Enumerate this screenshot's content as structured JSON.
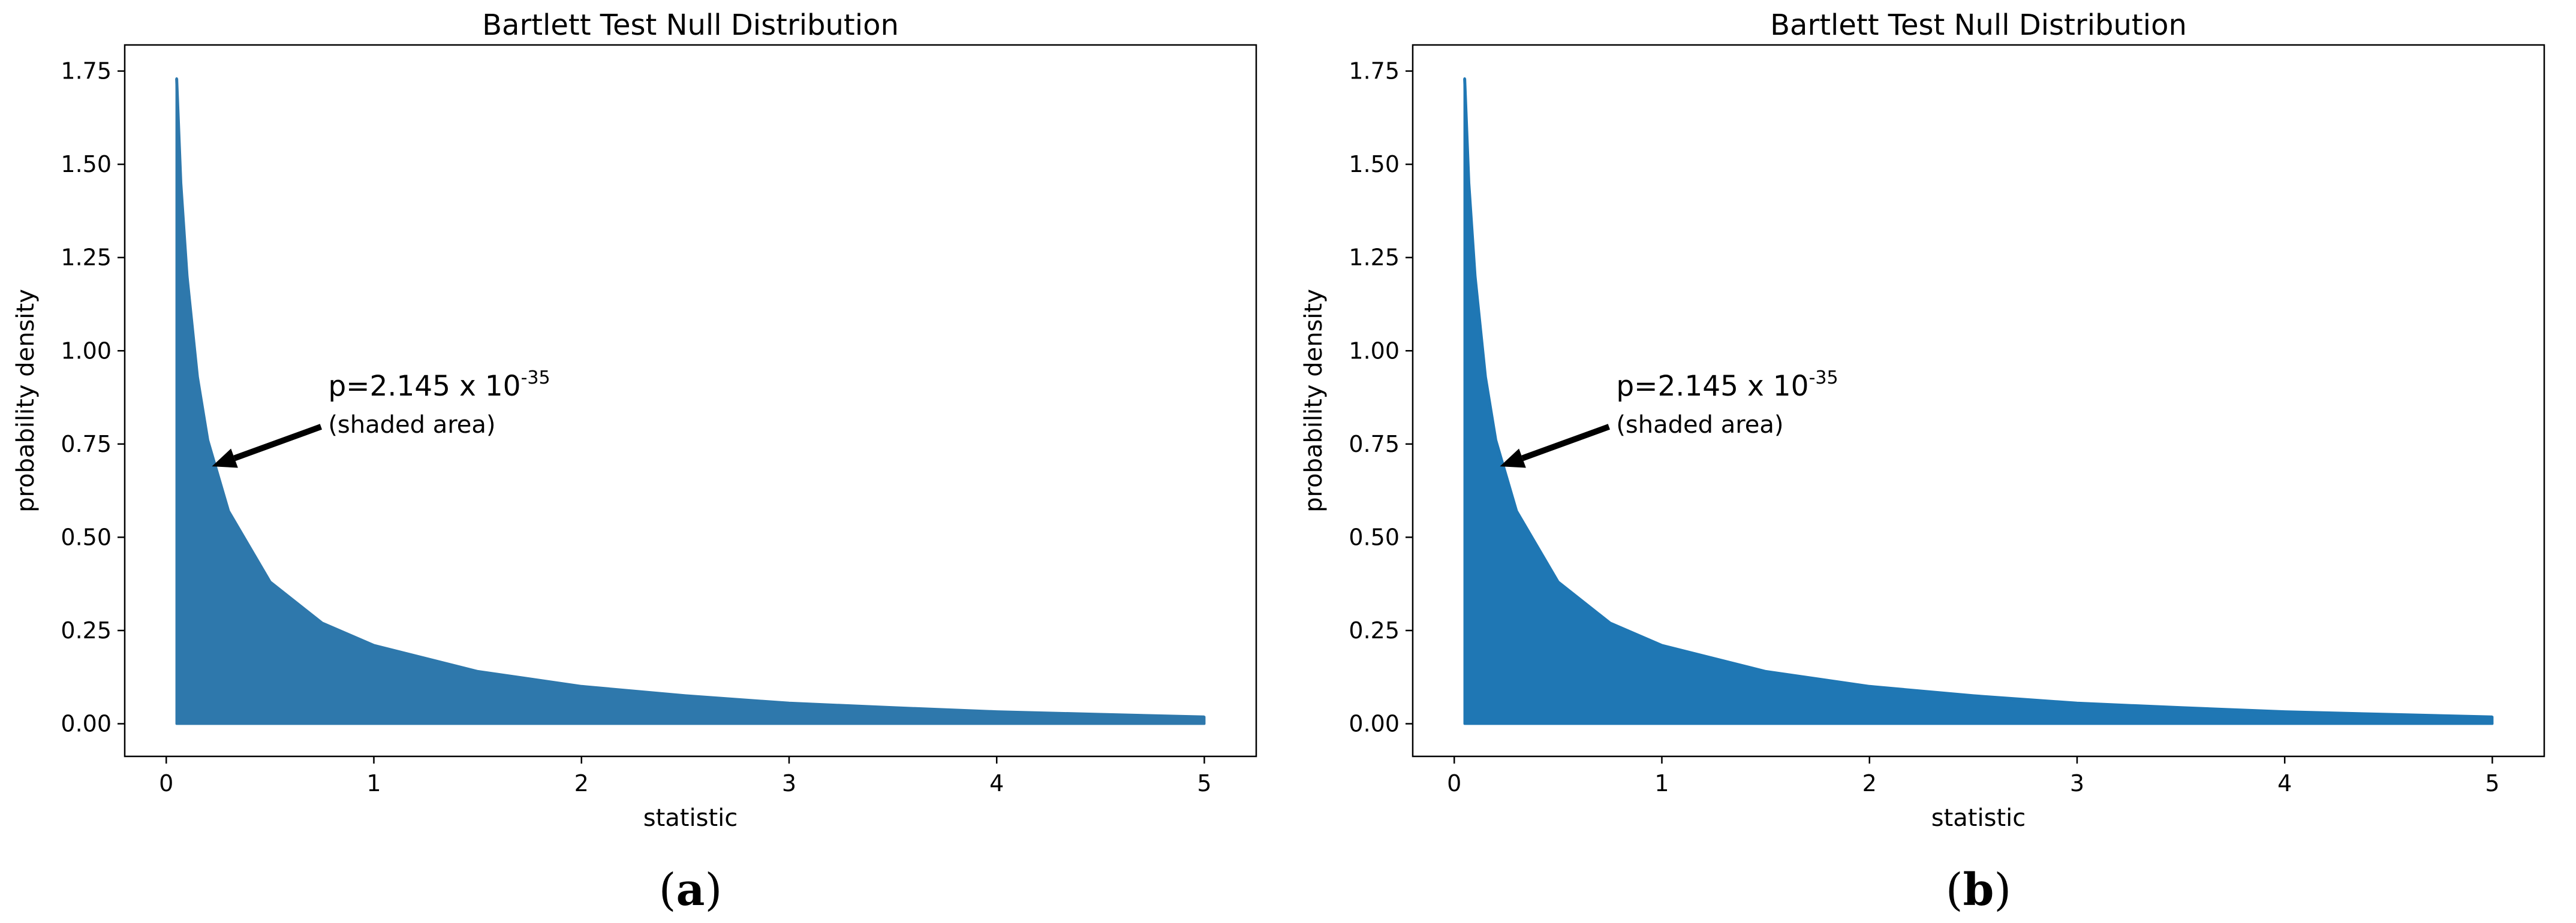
{
  "chart_data": [
    {
      "type": "area",
      "title": "Bartlett Test Null Distribution",
      "xlabel": "statistic",
      "ylabel": "probability density",
      "xlim": [
        -0.2,
        5.25
      ],
      "ylim": [
        -0.0875,
        1.82
      ],
      "xticks": [
        0,
        1,
        2,
        3,
        4,
        5
      ],
      "xtick_labels": [
        "0",
        "1",
        "2",
        "3",
        "4",
        "5"
      ],
      "yticks": [
        0.0,
        0.25,
        0.5,
        0.75,
        1.0,
        1.25,
        1.5,
        1.75
      ],
      "ytick_labels": [
        "0.00",
        "0.25",
        "0.50",
        "0.75",
        "1.00",
        "1.25",
        "1.50",
        "1.75"
      ],
      "shade_from_x": 0.05,
      "x": [
        0.05,
        0.07,
        0.1,
        0.15,
        0.2,
        0.3,
        0.5,
        0.75,
        1.0,
        1.5,
        2.0,
        2.5,
        3.0,
        3.5,
        4.0,
        4.5,
        5.0
      ],
      "y": [
        1.73,
        1.45,
        1.2,
        0.93,
        0.76,
        0.57,
        0.38,
        0.27,
        0.21,
        0.14,
        0.1,
        0.075,
        0.055,
        0.043,
        0.032,
        0.025,
        0.018
      ],
      "color": "#2e78ac",
      "annotation": {
        "text": "p=2.145 x 10",
        "exponent": "-35",
        "subtext": "(shaded area)",
        "text_x": 0.78,
        "text_y": 0.88,
        "arrow_to_x": 0.22,
        "arrow_to_y": 0.69
      },
      "panel_label": {
        "open": "(",
        "letter": "a",
        "close": ")"
      }
    },
    {
      "type": "area",
      "title": "Bartlett Test Null Distribution",
      "xlabel": "statistic",
      "ylabel": "probability density",
      "xlim": [
        -0.2,
        5.25
      ],
      "ylim": [
        -0.0875,
        1.82
      ],
      "xticks": [
        0,
        1,
        2,
        3,
        4,
        5
      ],
      "xtick_labels": [
        "0",
        "1",
        "2",
        "3",
        "4",
        "5"
      ],
      "yticks": [
        0.0,
        0.25,
        0.5,
        0.75,
        1.0,
        1.25,
        1.5,
        1.75
      ],
      "ytick_labels": [
        "0.00",
        "0.25",
        "0.50",
        "0.75",
        "1.00",
        "1.25",
        "1.50",
        "1.75"
      ],
      "shade_from_x": 0.05,
      "x": [
        0.05,
        0.07,
        0.1,
        0.15,
        0.2,
        0.3,
        0.5,
        0.75,
        1.0,
        1.5,
        2.0,
        2.5,
        3.0,
        3.5,
        4.0,
        4.5,
        5.0
      ],
      "y": [
        1.73,
        1.45,
        1.2,
        0.93,
        0.76,
        0.57,
        0.38,
        0.27,
        0.21,
        0.14,
        0.1,
        0.075,
        0.055,
        0.043,
        0.032,
        0.025,
        0.018
      ],
      "color": "#1f77b4",
      "annotation": {
        "text": "p=2.145 x 10",
        "exponent": "-35",
        "subtext": "(shaded area)",
        "text_x": 0.78,
        "text_y": 0.88,
        "arrow_to_x": 0.22,
        "arrow_to_y": 0.69
      },
      "panel_label": {
        "open": "(",
        "letter": "b",
        "close": ")"
      }
    }
  ]
}
